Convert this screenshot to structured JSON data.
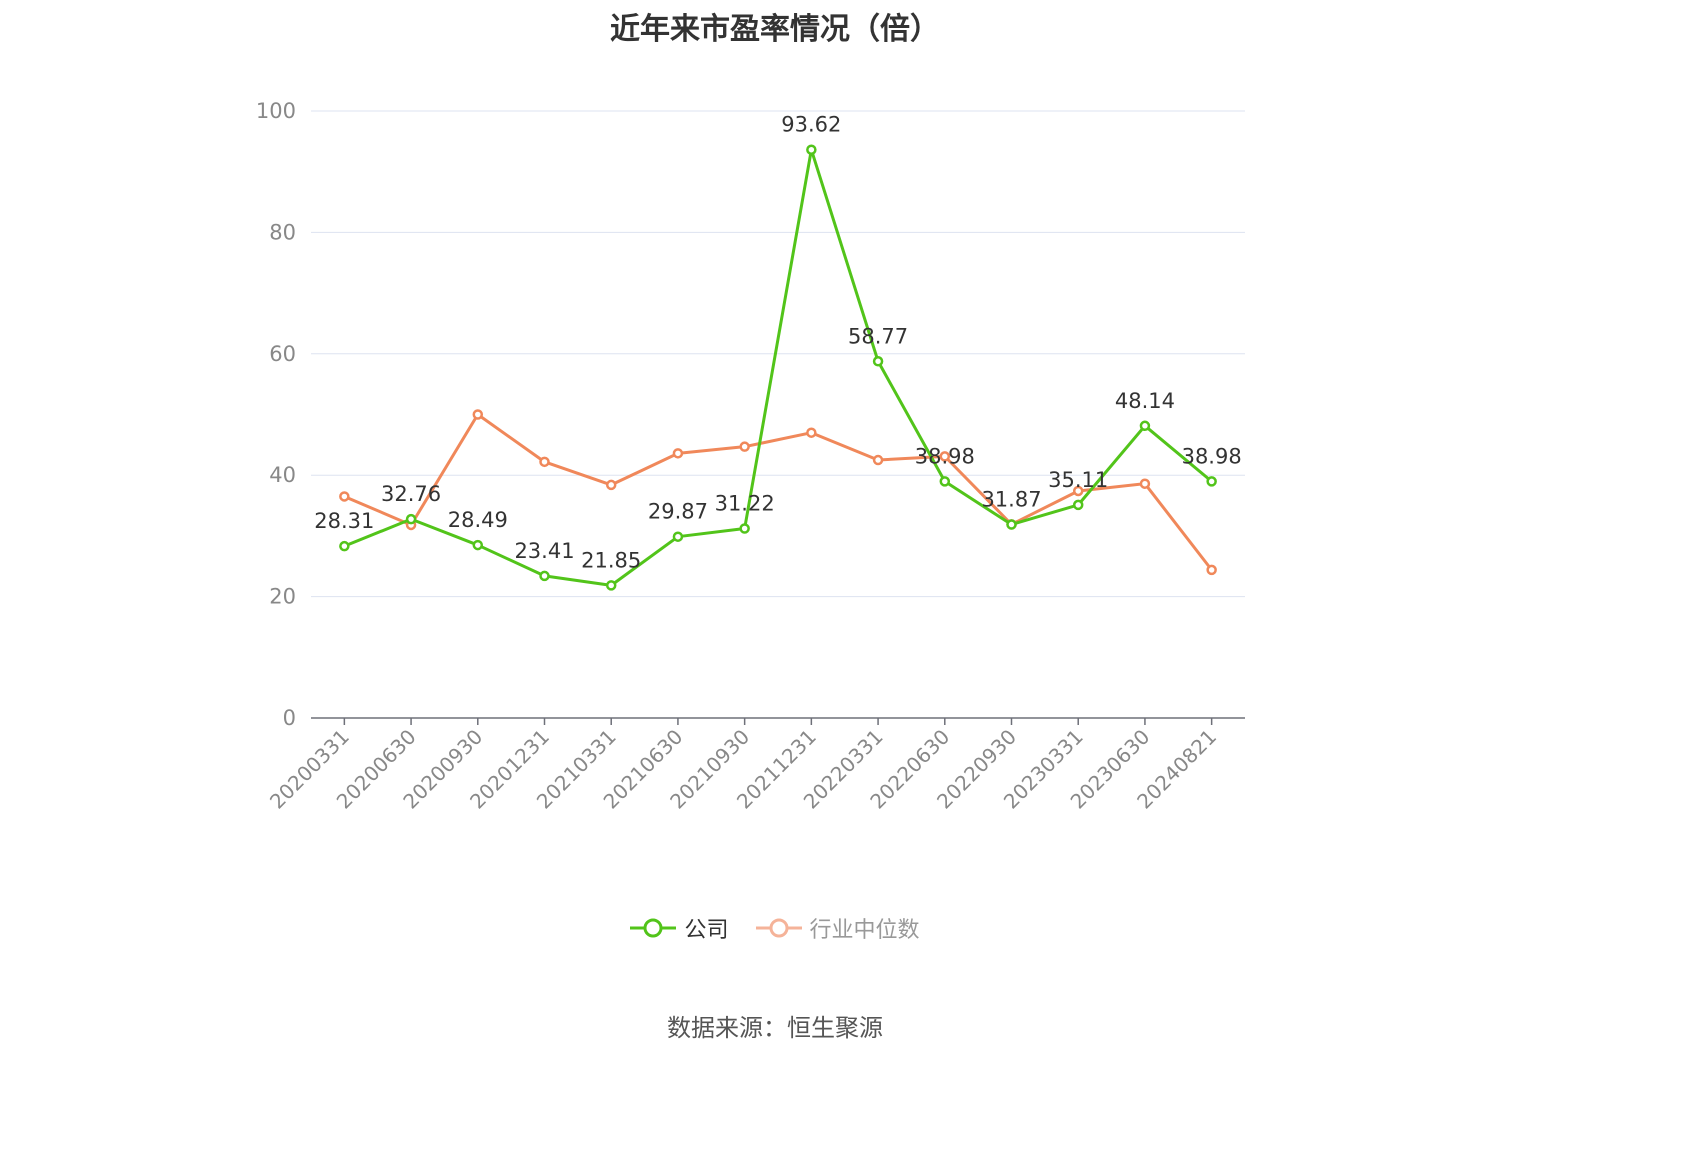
{
  "chart_data": {
    "type": "line",
    "title": "近年来市盈率情况（倍）",
    "categories": [
      "20200331",
      "20200630",
      "20200930",
      "20201231",
      "20210331",
      "20210630",
      "20210930",
      "20211231",
      "20220331",
      "20220630",
      "20220930",
      "20230331",
      "20230630",
      "20240821"
    ],
    "series": [
      {
        "name": "公司",
        "color": "#52c41a",
        "values": [
          28.31,
          32.76,
          28.49,
          23.41,
          21.85,
          29.87,
          31.22,
          93.62,
          58.77,
          38.98,
          31.87,
          35.11,
          48.14,
          38.98
        ],
        "labels": [
          "28.31",
          "32.76",
          "28.49",
          "23.41",
          "21.85",
          "29.87",
          "31.22",
          "93.62",
          "58.77",
          "38.98",
          "31.87",
          "35.11",
          "48.14",
          "38.98"
        ]
      },
      {
        "name": "行业中位数",
        "color": "#f0885a",
        "values": [
          36.5,
          31.8,
          50.0,
          42.2,
          38.4,
          43.6,
          44.7,
          47.0,
          42.5,
          43.1,
          31.9,
          37.4,
          38.6,
          24.4
        ]
      }
    ],
    "y_ticks": [
      "0",
      "20",
      "40",
      "60",
      "80",
      "100"
    ],
    "ylim": [
      0,
      100
    ],
    "grid": true,
    "legend_position": "bottom",
    "source": "数据来源：恒生聚源"
  }
}
